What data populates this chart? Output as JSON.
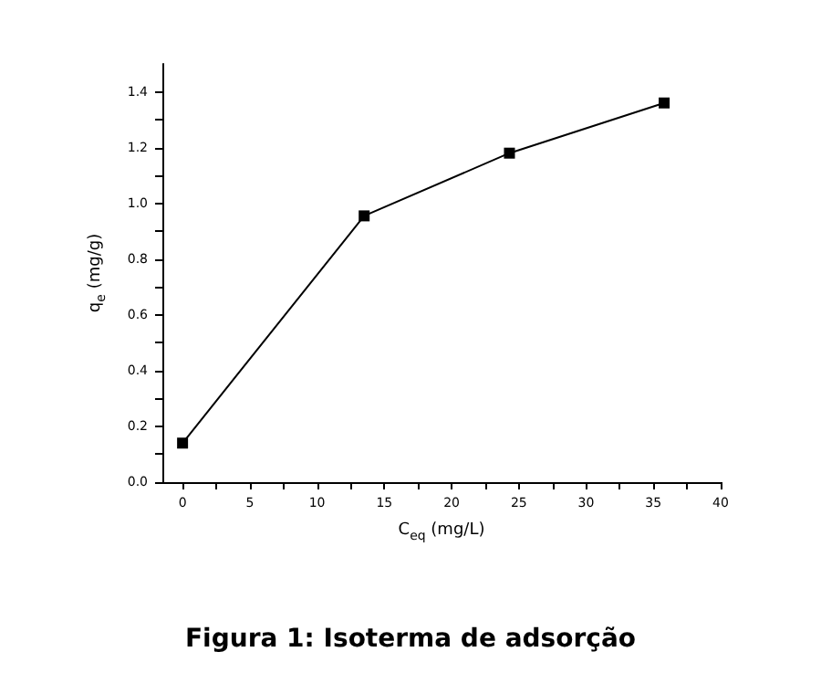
{
  "chart_data": {
    "type": "line",
    "title": "Figura 1: Isoterma de adsorção",
    "xlabel": "C$_{eq}$ (mg/L)",
    "ylabel": "q$_{e}$ (mg/g)",
    "x": [
      0,
      13.5,
      24.3,
      35.8
    ],
    "series": [
      {
        "color": "#000000",
        "values": [
          0.14,
          0.955,
          1.18,
          1.36
        ]
      }
    ],
    "xlim": [
      -1.5,
      40
    ],
    "ylim": [
      0,
      1.5
    ],
    "xticks": [
      0,
      5,
      10,
      15,
      20,
      25,
      30,
      35,
      40
    ],
    "yticks": [
      {
        "value": 0,
        "label": "0.0"
      },
      0.2,
      0.4,
      0.6,
      0.8,
      {
        "value": 1,
        "label": "1.0"
      },
      1.2,
      1.4
    ],
    "grid": false,
    "marker": "square",
    "line_style": "solid"
  }
}
